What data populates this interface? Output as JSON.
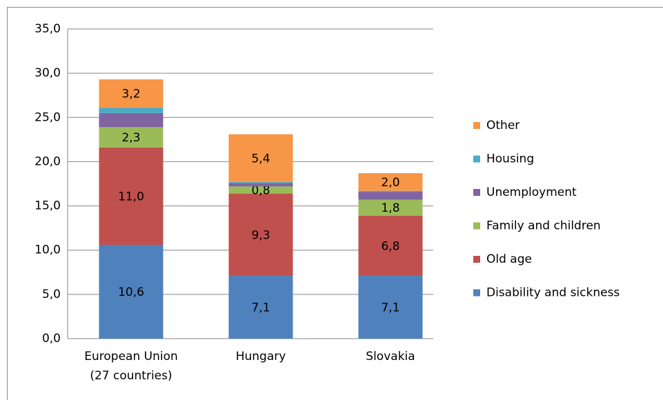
{
  "chart_data": {
    "type": "stacked_bar",
    "categories": [
      "European Union\n(27 countries)",
      "Hungary",
      "Slovakia"
    ],
    "series": [
      {
        "name": "Disability and sickness",
        "color": "#4F81BD",
        "values": [
          10.6,
          7.1,
          7.1
        ],
        "value_labels": [
          "10,6",
          "7,1",
          "7,1"
        ]
      },
      {
        "name": "Old age",
        "color": "#C0504D",
        "values": [
          11.0,
          9.3,
          6.8
        ],
        "value_labels": [
          "11,0",
          "9,3",
          "6,8"
        ]
      },
      {
        "name": "Family and children",
        "color": "#9BBB59",
        "values": [
          2.3,
          0.8,
          1.8
        ],
        "value_labels": [
          "2,3",
          "0,8",
          "1,8"
        ]
      },
      {
        "name": "Unemployment",
        "color": "#8064A2",
        "values": [
          1.6,
          0.4,
          0.9
        ],
        "value_labels": [
          null,
          null,
          null
        ]
      },
      {
        "name": "Housing",
        "color": "#4BACC6",
        "values": [
          0.6,
          0.1,
          0.1
        ],
        "value_labels": [
          null,
          null,
          null
        ]
      },
      {
        "name": "Other",
        "color": "#F79646",
        "values": [
          3.2,
          5.4,
          2.0
        ],
        "value_labels": [
          "3,2",
          "5,4",
          "2,0"
        ]
      }
    ],
    "ylim": [
      0,
      35
    ],
    "yticks": [
      {
        "value": 0,
        "label": "0,0"
      },
      {
        "value": 5,
        "label": "5,0"
      },
      {
        "value": 10,
        "label": "10,0"
      },
      {
        "value": 15,
        "label": "15,0"
      },
      {
        "value": 20,
        "label": "20,0"
      },
      {
        "value": 25,
        "label": "25,0"
      },
      {
        "value": 30,
        "label": "30,0"
      },
      {
        "value": 35,
        "label": "35,0"
      }
    ],
    "grid": true,
    "legend": "right"
  }
}
